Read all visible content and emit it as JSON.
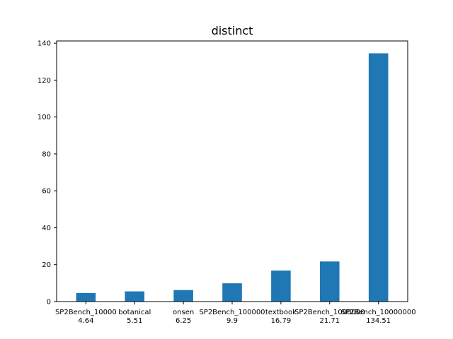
{
  "chart_data": {
    "type": "bar",
    "title": "distinct",
    "xlabel": "",
    "ylabel": "",
    "categories": [
      "SP2Bench_10000",
      "botanical",
      "onsen",
      "SP2Bench_100000",
      "textbook",
      "SP2Bench_1000000",
      "SP2Bench_10000000"
    ],
    "values": [
      4.64,
      5.51,
      6.25,
      9.9,
      16.79,
      21.71,
      134.51
    ],
    "value_labels": [
      "4.64",
      "5.51",
      "6.25",
      "9.9",
      "16.79",
      "21.71",
      "134.51"
    ],
    "ylim": [
      0,
      141.2
    ],
    "yticks": [
      0,
      20,
      40,
      60,
      80,
      100,
      120,
      140
    ],
    "ytick_labels": [
      "0",
      "20",
      "40",
      "60",
      "80",
      "100",
      "120",
      "140"
    ],
    "grid": false,
    "bar_color": "#1f77b4"
  }
}
